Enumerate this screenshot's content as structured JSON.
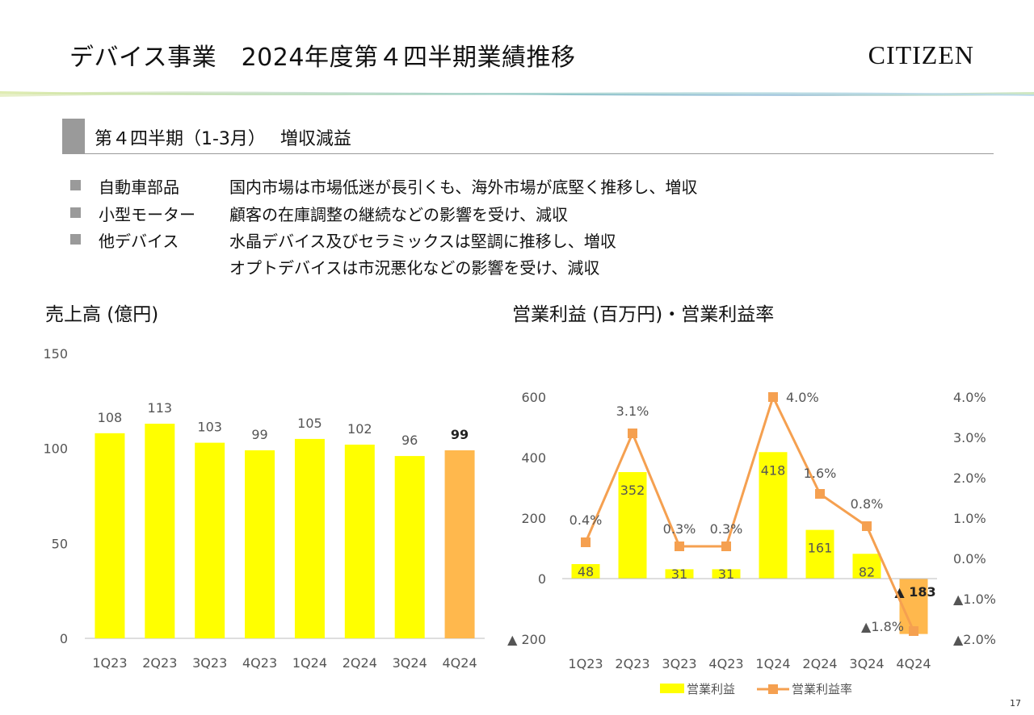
{
  "header": {
    "title": "デバイス事業　2024年度第４四半期業績推移",
    "brand": "CITIZEN"
  },
  "section": {
    "title": "第４四半期（1-3月）　 増収減益"
  },
  "bullets": [
    {
      "category": "自動車部品",
      "lines": [
        "国内市場は市場低迷が長引くも、海外市場が底堅く推移し、増収"
      ]
    },
    {
      "category": "小型モーター",
      "lines": [
        "顧客の在庫調整の継続などの影響を受け、減収"
      ]
    },
    {
      "category": "他デバイス",
      "lines": [
        "水晶デバイス及びセラミックスは堅調に推移し、増収",
        "オプトデバイスは市況悪化などの影響を受け、減収"
      ]
    }
  ],
  "colors": {
    "bar": "#FFFF00",
    "highlight": "#FFB84D",
    "line": "#F5A050",
    "bullet": "#9a9a9a"
  },
  "chart_data": [
    {
      "type": "bar",
      "title": "売上高 (億円)",
      "categories": [
        "1Q23",
        "2Q23",
        "3Q23",
        "4Q23",
        "1Q24",
        "2Q24",
        "3Q24",
        "4Q24"
      ],
      "values": [
        108,
        113,
        103,
        99,
        105,
        102,
        96,
        99
      ],
      "data_labels": [
        "108",
        "113",
        "103",
        "99",
        "105",
        "102",
        "96",
        "99"
      ],
      "highlight_index": 7,
      "ylim": [
        0,
        150
      ],
      "yticks": [
        0,
        50,
        100,
        150
      ],
      "ytick_labels": [
        "0",
        "50",
        "100",
        "150"
      ],
      "grid": false
    },
    {
      "type": "bar+line",
      "title": "営業利益 (百万円)・営業利益率",
      "categories": [
        "1Q23",
        "2Q23",
        "3Q23",
        "4Q23",
        "1Q24",
        "2Q24",
        "3Q24",
        "4Q24"
      ],
      "series": [
        {
          "name": "営業利益",
          "type": "bar",
          "axis": "left",
          "values": [
            48,
            352,
            31,
            31,
            418,
            161,
            82,
            -183
          ],
          "data_labels": [
            "48",
            "352",
            "31",
            "31",
            "418",
            "161",
            "82",
            "▲ 183"
          ]
        },
        {
          "name": "営業利益率",
          "type": "line",
          "axis": "right",
          "values": [
            0.4,
            3.1,
            0.3,
            0.3,
            4.0,
            1.6,
            0.8,
            -1.8
          ],
          "data_labels": [
            "0.4%",
            "3.1%",
            "0.3%",
            "0.3%",
            "4.0%",
            "1.6%",
            "0.8%",
            "▲1.8%"
          ]
        }
      ],
      "highlight_index": 7,
      "y_left": {
        "lim": [
          -200,
          600
        ],
        "ticks": [
          -200,
          0,
          200,
          400,
          600
        ],
        "tick_labels": [
          "▲ 200",
          "0",
          "200",
          "400",
          "600"
        ]
      },
      "y_right": {
        "lim": [
          -2.0,
          4.0
        ],
        "ticks": [
          -2,
          -1,
          0,
          1,
          2,
          3,
          4
        ],
        "tick_labels": [
          "▲2.0%",
          "▲1.0%",
          "0.0%",
          "1.0%",
          "2.0%",
          "3.0%",
          "4.0%"
        ]
      },
      "legend": {
        "position": "bottom",
        "items": [
          "営業利益",
          "営業利益率"
        ]
      },
      "grid": false
    }
  ],
  "page_number": "17"
}
